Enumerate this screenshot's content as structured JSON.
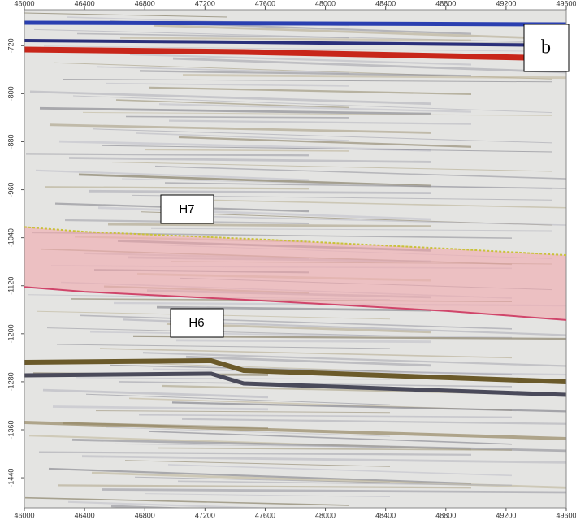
{
  "chart_data": {
    "type": "seismic",
    "panel_label": "b",
    "xlim": [
      46000,
      49600
    ],
    "xticks": [
      46000,
      46400,
      46800,
      47200,
      47600,
      48000,
      48400,
      48800,
      49200,
      49600
    ],
    "ylim": [
      -1490,
      -660
    ],
    "yticks": [
      -720,
      -800,
      -880,
      -960,
      -1040,
      -1120,
      -1200,
      -1280,
      -1360,
      -1440
    ],
    "series": [
      {
        "name": "H7",
        "color": "#c9c23a",
        "x": [
          46000,
          46400,
          47600,
          48800,
          49600
        ],
        "values": [
          -1022,
          -1030,
          -1043,
          -1058,
          -1069
        ]
      },
      {
        "name": "H6",
        "color": "#d0456a",
        "x": [
          46000,
          46400,
          47600,
          48800,
          49600
        ],
        "values": [
          -1122,
          -1130,
          -1145,
          -1162,
          -1177
        ]
      }
    ]
  }
}
